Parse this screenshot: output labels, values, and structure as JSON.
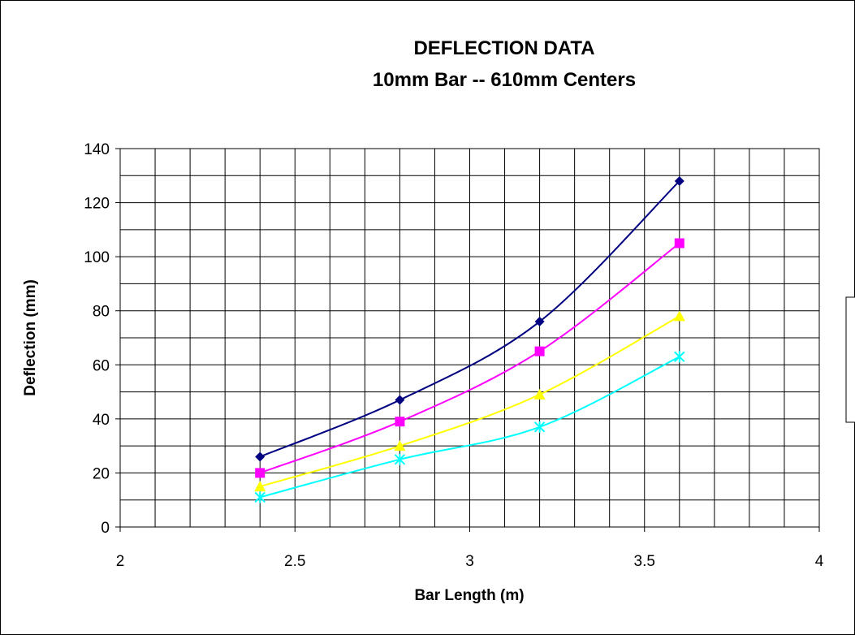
{
  "chart_data": {
    "type": "line",
    "title": "DEFLECTION DATA",
    "subtitle": "10mm Bar -- 610mm Centers",
    "xlabel": "Bar Length (m)",
    "ylabel": "Deflection (mm)",
    "xlim": [
      2,
      4
    ],
    "ylim": [
      0,
      140
    ],
    "xticks": [
      "2",
      "2.5",
      "3",
      "3.5",
      "4"
    ],
    "yticks": [
      "0",
      "20",
      "40",
      "60",
      "80",
      "100",
      "120",
      "140"
    ],
    "grid": true,
    "legend": "right (partially cropped)",
    "x": [
      2.4,
      2.8,
      3.2,
      3.6
    ],
    "series": [
      {
        "values": [
          26,
          47,
          76,
          128
        ],
        "color": "#000080",
        "marker": "diamond"
      },
      {
        "values": [
          20,
          39,
          65,
          105
        ],
        "color": "#FF00FF",
        "marker": "square"
      },
      {
        "values": [
          15,
          30,
          49,
          78
        ],
        "color": "#FFFF00",
        "marker": "triangle"
      },
      {
        "values": [
          11,
          25,
          37,
          63
        ],
        "color": "#00FFFF",
        "marker": "x"
      }
    ]
  }
}
